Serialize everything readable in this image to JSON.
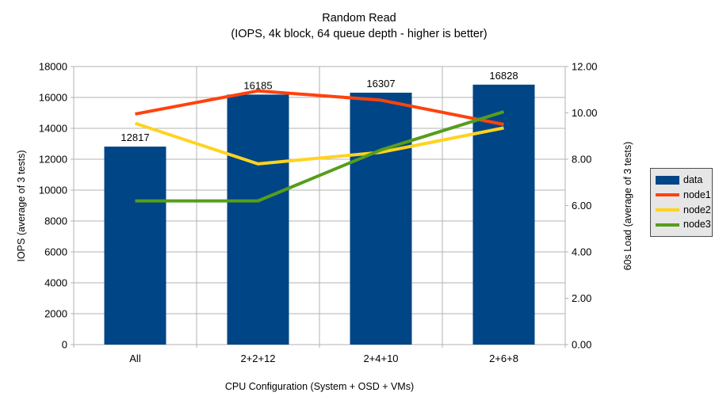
{
  "title": "Random Read",
  "subtitle": "(IOPS, 4k block, 64 queue depth - higher is better)",
  "colors": {
    "background": "#FFFFFF",
    "grid": "#B3B3B3",
    "axis": "#B3B3B3",
    "text": "#000000",
    "legend_bg": "#E6E6E6",
    "legend_border": "#4D4D4D"
  },
  "chart_data": {
    "type": "bar+line",
    "categories": [
      "All",
      "2+2+12",
      "2+4+10",
      "2+6+8"
    ],
    "bar_series": {
      "name": "data",
      "axis": "left",
      "color": "#004586",
      "values": [
        12817,
        16185,
        16307,
        16828
      ],
      "data_labels": [
        "12817",
        "16185",
        "16307",
        "16828"
      ]
    },
    "line_series": [
      {
        "name": "node1",
        "axis": "right",
        "color": "#FF420E",
        "values": [
          9.95,
          10.95,
          10.55,
          9.5
        ]
      },
      {
        "name": "node2",
        "axis": "right",
        "color": "#FFD320",
        "values": [
          9.55,
          7.8,
          8.3,
          9.35
        ]
      },
      {
        "name": "node3",
        "axis": "right",
        "color": "#579D1C",
        "values": [
          6.2,
          6.2,
          8.4,
          10.05
        ]
      }
    ],
    "left_axis": {
      "label": "IOPS (average of 3 tests)",
      "min": 0,
      "max": 18000,
      "step": 2000,
      "decimals": 0
    },
    "right_axis": {
      "label": "60s Load (average of 3 tests)",
      "min": 0,
      "max": 12,
      "step": 2,
      "decimals": 2
    },
    "x_axis": {
      "label": "CPU Configuration (System + OSD + VMs)"
    },
    "grid": true,
    "legend": {
      "position": "right",
      "items": [
        {
          "label": "data",
          "swatch": "bar",
          "color": "#004586"
        },
        {
          "label": "node1",
          "swatch": "line",
          "color": "#FF420E"
        },
        {
          "label": "node2",
          "swatch": "line",
          "color": "#FFD320"
        },
        {
          "label": "node3",
          "swatch": "line",
          "color": "#579D1C"
        }
      ]
    }
  }
}
